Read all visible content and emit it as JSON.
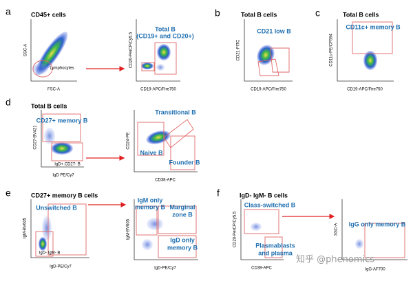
{
  "panels": [
    {
      "letter": "a",
      "title": "CD45+ cells",
      "plots": [
        {
          "x_label": "FSC-A",
          "y_label": "SSC-A",
          "gates": [
            [
              "Lymphocytes"
            ]
          ]
        },
        {
          "x_label": "CD19-APC/Fire750",
          "y_label": "CD20-PerCP/Cy5.5",
          "gates": [
            [
              "Total B",
              "(CD19+ and CD20+)"
            ]
          ]
        }
      ]
    },
    {
      "letter": "b",
      "title": "Total B cells",
      "plots": [
        {
          "x_label": "CD19-APC/Fire750",
          "y_label": "CD21-FITC",
          "gates": [
            [
              "CD21 low B"
            ]
          ]
        }
      ]
    },
    {
      "letter": "c",
      "title": "Total B cells",
      "plots": [
        {
          "x_label": "CD19-APC/Fire750",
          "y_label": "CD11c-PE/CF594",
          "gates": [
            [
              "CD11c+ memory B"
            ]
          ]
        }
      ]
    },
    {
      "letter": "d",
      "title": "Total B cells",
      "plots": [
        {
          "x_label": "IgD PE/Cy7",
          "y_label": "CD27-BV421",
          "gates": [
            [
              "CD27+ memory B"
            ],
            [
              "IgD+ CD27- B"
            ]
          ]
        },
        {
          "x_label": "CD38-APC",
          "y_label": "CD24-PE",
          "gates": [
            [
              "Transitional B"
            ],
            [
              "Naive B"
            ],
            [
              "Founder B"
            ]
          ]
        }
      ]
    },
    {
      "letter": "e",
      "title": "CD27+ memory B cells",
      "plots": [
        {
          "x_label": "IgD-PE/Cy7",
          "y_label": "IgM-BV605",
          "gates": [
            [
              "Unswitched B"
            ],
            [
              "IgD- IgM- B"
            ]
          ]
        },
        {
          "x_label": "IgD-PE/Cy7",
          "y_label": "IgM-BV605",
          "gates": [
            [
              "IgM only",
              "memory B"
            ],
            [
              "Marginal",
              "zone B"
            ],
            [
              "IgD only",
              "memory B"
            ]
          ]
        }
      ]
    },
    {
      "letter": "f",
      "title": "IgD- IgM- B cells",
      "plots": [
        {
          "x_label": "CD38-APC",
          "y_label": "CD20-PerCP/Cy5.5",
          "gates": [
            [
              "Class-switched B"
            ],
            [
              "Plasmablasts",
              "and plasma"
            ]
          ]
        },
        {
          "x_label": "IgG-AF700",
          "y_label": "SSC-A",
          "gates": [
            [
              "IgG only memory B"
            ]
          ]
        }
      ]
    }
  ],
  "watermark": "知乎 @phenomics"
}
